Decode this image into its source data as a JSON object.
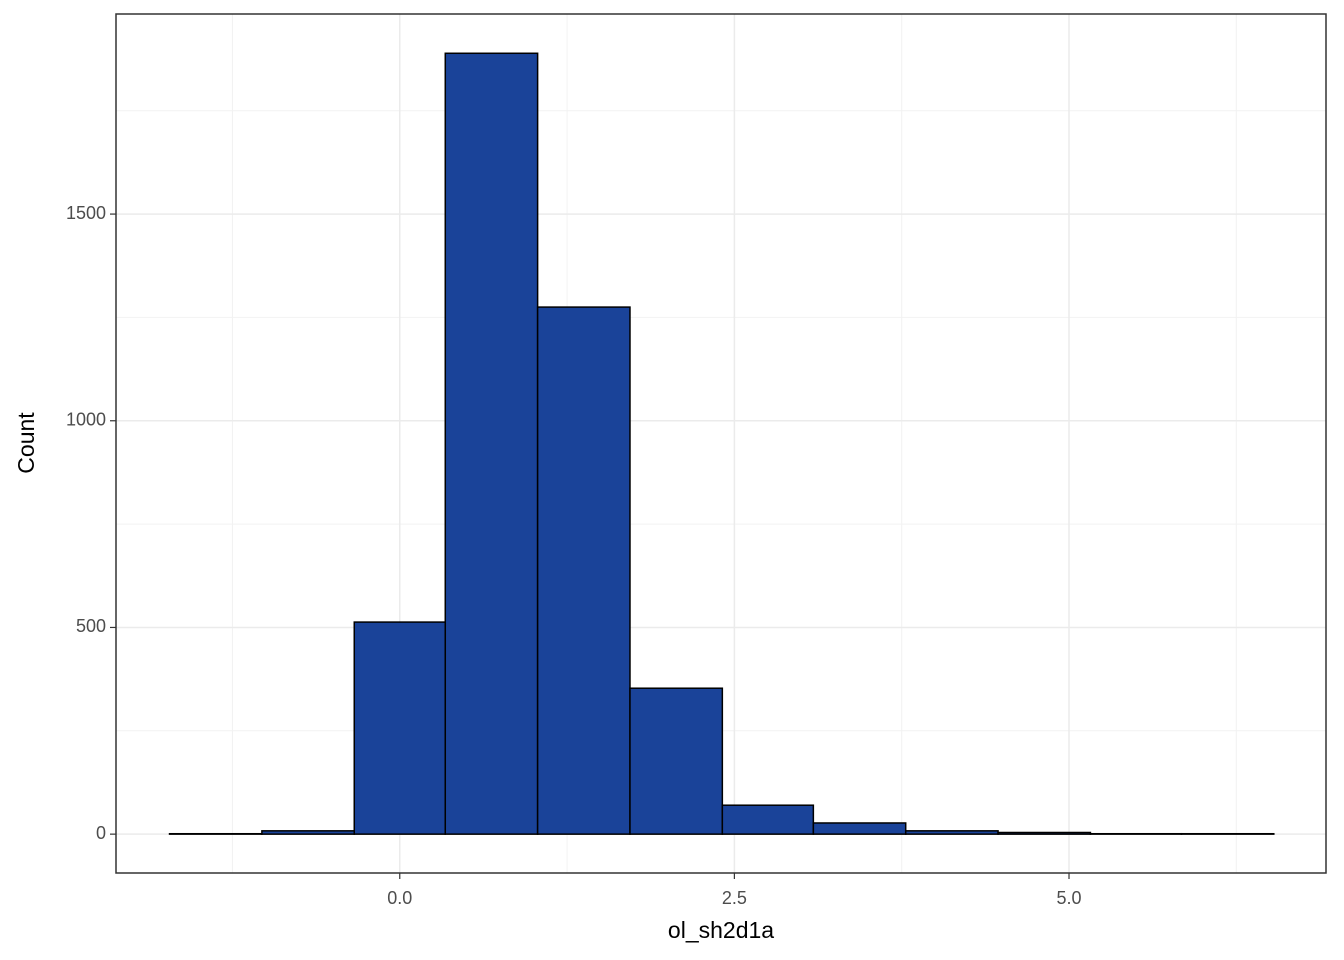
{
  "chart_data": {
    "type": "histogram",
    "x_label": "ol_sh2d1a",
    "y_label": "Count",
    "bins": [
      -1.72,
      -1.03,
      -0.34,
      0.34,
      1.03,
      1.72,
      2.41,
      3.09,
      3.78,
      4.47,
      5.16,
      5.84,
      6.53
    ],
    "values": [
      1,
      8,
      513,
      1889,
      1275,
      353,
      70,
      27,
      8,
      4,
      1,
      1
    ],
    "color": "#1a4399",
    "edge_color": "#000000",
    "xlim": [
      -2.12,
      6.92
    ],
    "ylim": [
      -94,
      1984
    ],
    "xticks": [
      {
        "value": 0,
        "label": "0.0"
      },
      {
        "value": 2.5,
        "label": "2.5"
      },
      {
        "value": 5,
        "label": "5.0"
      }
    ],
    "yticks": [
      0,
      500,
      1000,
      1500
    ],
    "grid": true
  }
}
